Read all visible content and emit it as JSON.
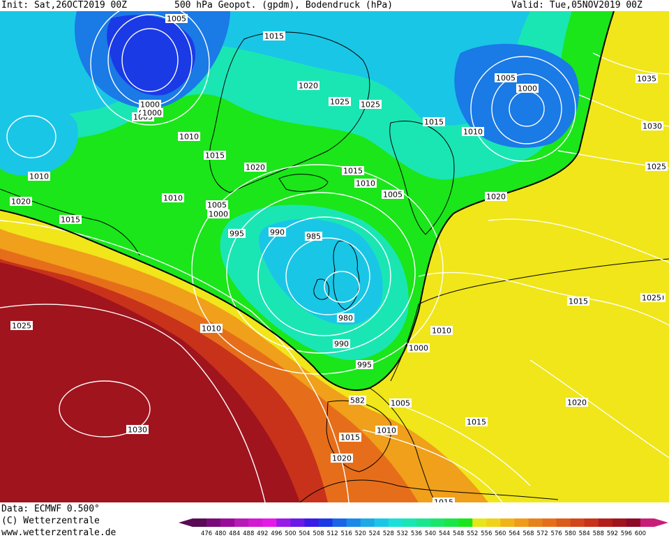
{
  "header": {
    "init": "Init: Sat,26OCT2019 00Z",
    "title": "500 hPa Geopot. (gpdm), Bodendruck (hPa)",
    "valid": "Valid: Tue,05NOV2019 00Z"
  },
  "footer": {
    "data_source": "Data: ECMWF  0.500°",
    "copyright": "(C) Wetterzentrale",
    "website": "www.wetterzentrale.de"
  },
  "colorbar": {
    "levels": [
      "476",
      "480",
      "484",
      "488",
      "492",
      "496",
      "500",
      "504",
      "508",
      "512",
      "516",
      "520",
      "524",
      "528",
      "532",
      "536",
      "540",
      "544",
      "548",
      "552",
      "556",
      "560",
      "564",
      "568",
      "572",
      "576",
      "580",
      "584",
      "588",
      "592",
      "596",
      "600"
    ],
    "colors": [
      "#5a0a55",
      "#7a0a7a",
      "#9a0a9a",
      "#b81ab8",
      "#d21ad2",
      "#e61ae6",
      "#9a1ae6",
      "#6a1ae6",
      "#3a1ae6",
      "#1a3ae6",
      "#1a66e6",
      "#1a8ae6",
      "#1aaae6",
      "#1ac6e6",
      "#1ae0d8",
      "#1ae6b4",
      "#1ae690",
      "#1ae66c",
      "#1ae648",
      "#1ae61a",
      "#e6e61a",
      "#f0d21a",
      "#f0b41a",
      "#f09b1a",
      "#e6821a",
      "#e66e1a",
      "#dc5a1a",
      "#d2461a",
      "#c8321a",
      "#b41e1a",
      "#a0141e",
      "#8c0a28",
      "#c81e78"
    ]
  },
  "map": {
    "colors": {
      "deep_blue": "#1a3ae6",
      "blue": "#1a7ae6",
      "cyan": "#1ac6e6",
      "aqua": "#1ae6b4",
      "green": "#1ae61a",
      "yellow": "#f0e61a",
      "orange": "#f0a01a",
      "dark_orange": "#e66e1a",
      "red": "#c8321a",
      "dark_red": "#a0141e"
    },
    "isobar_labels": [
      "1005",
      "1015",
      "1000",
      "995",
      "1005",
      "1020",
      "1025",
      "1025",
      "1010",
      "1015",
      "1020",
      "1010",
      "1015",
      "1010",
      "1020",
      "1015",
      "1010",
      "1005",
      "1005",
      "1000",
      "995",
      "990",
      "985",
      "980",
      "990",
      "995",
      "1015",
      "1010",
      "1020",
      "1000",
      "1005",
      "1010",
      "1015",
      "1015",
      "1020",
      "1015",
      "1030",
      "1025",
      "1010",
      "1020",
      "1015",
      "1035",
      "1030",
      "1025",
      "1005",
      "1000",
      "1020",
      "1025",
      "1010",
      "1000",
      "582"
    ]
  }
}
